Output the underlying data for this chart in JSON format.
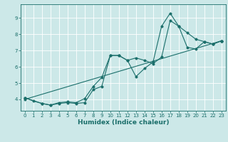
{
  "xlabel": "Humidex (Indice chaleur)",
  "bg_color": "#cce8e8",
  "grid_color": "#ffffff",
  "line_color": "#1a6e6a",
  "xlim": [
    -0.5,
    23.5
  ],
  "ylim": [
    3.3,
    9.85
  ],
  "xticks": [
    0,
    1,
    2,
    3,
    4,
    5,
    6,
    7,
    8,
    9,
    10,
    11,
    12,
    13,
    14,
    15,
    16,
    17,
    18,
    19,
    20,
    21,
    22,
    23
  ],
  "yticks": [
    4,
    5,
    6,
    7,
    8,
    9
  ],
  "line1_x": [
    0,
    1,
    2,
    3,
    4,
    5,
    6,
    7,
    8,
    9,
    10,
    11,
    12,
    13,
    14,
    15,
    16,
    17,
    18,
    19,
    20,
    21,
    22,
    23
  ],
  "line1_y": [
    4.1,
    3.9,
    3.75,
    3.65,
    3.75,
    3.8,
    3.75,
    3.8,
    4.6,
    4.8,
    6.7,
    6.7,
    6.4,
    5.4,
    5.9,
    6.3,
    8.5,
    9.3,
    8.5,
    8.1,
    7.7,
    7.55,
    7.4,
    7.6
  ],
  "line2_x": [
    0,
    2,
    3,
    4,
    5,
    6,
    7,
    8,
    9,
    10,
    11,
    12,
    13,
    14,
    15,
    16,
    17,
    18,
    19,
    20,
    21,
    22,
    23
  ],
  "line2_y": [
    4.1,
    3.75,
    3.65,
    3.8,
    3.85,
    3.8,
    4.05,
    4.8,
    5.35,
    6.7,
    6.7,
    6.4,
    6.55,
    6.4,
    6.2,
    6.6,
    8.85,
    8.5,
    7.2,
    7.1,
    7.55,
    7.4,
    7.6
  ],
  "line3_x": [
    0,
    23
  ],
  "line3_y": [
    4.0,
    7.6
  ]
}
